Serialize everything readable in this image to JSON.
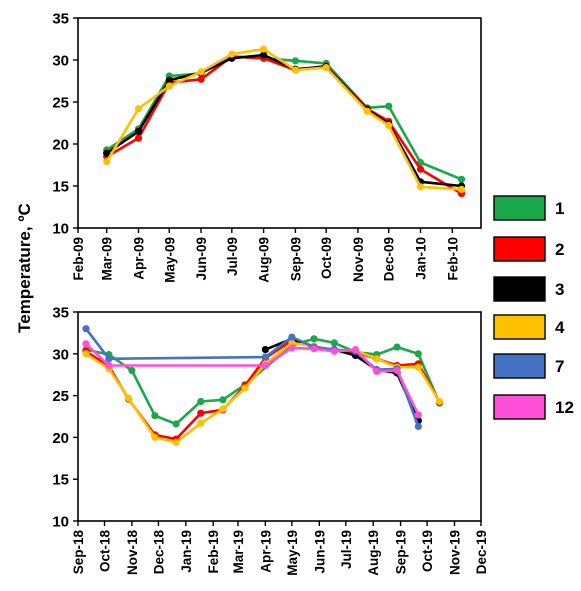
{
  "shared_ylabel": "Temperature, ºC",
  "legend": [
    {
      "label": "1",
      "color": "#1aa84a"
    },
    {
      "label": "2",
      "color": "#ff0000"
    },
    {
      "label": "3",
      "color": "#000000"
    },
    {
      "label": "4",
      "color": "#ffc000"
    },
    {
      "label": "7",
      "color": "#4472c4"
    },
    {
      "label": "12",
      "color": "#ff4fd8"
    }
  ],
  "chart_data": [
    {
      "type": "line",
      "title": "",
      "xlabel": "",
      "ylabel": "Temperature, ºC",
      "ylim": [
        10,
        35
      ],
      "yticks": [
        10,
        15,
        20,
        25,
        30,
        35
      ],
      "grid": false,
      "x_axis": {
        "type": "date",
        "min": "2009-02-01",
        "max": "2010-03-01"
      },
      "xticks": [
        {
          "date": "2009-02-01",
          "label": "Feb-09"
        },
        {
          "date": "2009-03-01",
          "label": "Mar-09"
        },
        {
          "date": "2009-04-01",
          "label": "Apr-09"
        },
        {
          "date": "2009-05-01",
          "label": "May-09"
        },
        {
          "date": "2009-06-01",
          "label": "Jun-09"
        },
        {
          "date": "2009-07-01",
          "label": "Jul-09"
        },
        {
          "date": "2009-08-01",
          "label": "Aug-09"
        },
        {
          "date": "2009-09-01",
          "label": "Sep-09"
        },
        {
          "date": "2009-10-01",
          "label": "Oct-09"
        },
        {
          "date": "2009-11-01",
          "label": "Nov-09"
        },
        {
          "date": "2009-12-01",
          "label": "Dec-09"
        },
        {
          "date": "2010-01-01",
          "label": "Jan-10"
        },
        {
          "date": "2010-02-01",
          "label": "Feb-10"
        }
      ],
      "series": [
        {
          "name": "1",
          "color": "#1aa84a",
          "points": [
            [
              "2009-03-01",
              19.3
            ],
            [
              "2009-04-01",
              21.8
            ],
            [
              "2009-05-01",
              28.1
            ],
            [
              "2009-06-01",
              28.4
            ],
            [
              "2009-07-01",
              30.4
            ],
            [
              "2009-08-01",
              30.2
            ],
            [
              "2009-09-01",
              29.9
            ],
            [
              "2009-10-01",
              29.6
            ],
            [
              "2009-11-10",
              24.3
            ],
            [
              "2009-12-01",
              24.5
            ],
            [
              "2010-01-01",
              17.8
            ],
            [
              "2010-02-10",
              15.8
            ]
          ]
        },
        {
          "name": "2",
          "color": "#ff0000",
          "points": [
            [
              "2009-03-01",
              18.5
            ],
            [
              "2009-04-01",
              20.7
            ],
            [
              "2009-05-01",
              27.3
            ],
            [
              "2009-06-01",
              27.7
            ],
            [
              "2009-07-01",
              30.4
            ],
            [
              "2009-08-01",
              30.2
            ],
            [
              "2009-09-01",
              28.8
            ],
            [
              "2009-10-01",
              29.3
            ],
            [
              "2009-11-10",
              24.2
            ],
            [
              "2009-12-01",
              22.7
            ],
            [
              "2010-01-01",
              17.0
            ],
            [
              "2010-02-10",
              14.1
            ]
          ]
        },
        {
          "name": "3",
          "color": "#000000",
          "points": [
            [
              "2009-03-01",
              18.9
            ],
            [
              "2009-04-01",
              21.5
            ],
            [
              "2009-05-01",
              27.6
            ],
            [
              "2009-06-01",
              28.5
            ],
            [
              "2009-07-01",
              30.2
            ],
            [
              "2009-08-01",
              30.6
            ],
            [
              "2009-09-01",
              28.9
            ],
            [
              "2009-10-01",
              29.2
            ],
            [
              "2009-11-10",
              24.1
            ],
            [
              "2009-12-01",
              22.4
            ],
            [
              "2010-01-01",
              15.5
            ],
            [
              "2010-02-10",
              15.0
            ]
          ]
        },
        {
          "name": "4",
          "color": "#ffc000",
          "points": [
            [
              "2009-03-01",
              17.9
            ],
            [
              "2009-04-01",
              24.2
            ],
            [
              "2009-05-01",
              26.9
            ],
            [
              "2009-06-01",
              28.6
            ],
            [
              "2009-07-01",
              30.7
            ],
            [
              "2009-08-01",
              31.3
            ],
            [
              "2009-09-01",
              28.8
            ],
            [
              "2009-10-01",
              29.1
            ],
            [
              "2009-11-10",
              23.9
            ],
            [
              "2009-12-01",
              22.2
            ],
            [
              "2010-01-01",
              14.9
            ],
            [
              "2010-02-10",
              14.6
            ]
          ]
        }
      ]
    },
    {
      "type": "line",
      "title": "",
      "xlabel": "",
      "ylabel": "Temperature, ºC",
      "ylim": [
        10,
        35
      ],
      "yticks": [
        10,
        15,
        20,
        25,
        30,
        35
      ],
      "grid": false,
      "x_axis": {
        "type": "date",
        "min": "2018-09-01",
        "max": "2019-12-01"
      },
      "xticks": [
        {
          "date": "2018-09-01",
          "label": "Sep-18"
        },
        {
          "date": "2018-10-01",
          "label": "Oct-18"
        },
        {
          "date": "2018-11-01",
          "label": "Nov-18"
        },
        {
          "date": "2018-12-01",
          "label": "Dec-18"
        },
        {
          "date": "2019-01-01",
          "label": "Jan-19"
        },
        {
          "date": "2019-02-01",
          "label": "Feb-19"
        },
        {
          "date": "2019-03-01",
          "label": "Mar-19"
        },
        {
          "date": "2019-04-01",
          "label": "Apr-19"
        },
        {
          "date": "2019-05-01",
          "label": "May-19"
        },
        {
          "date": "2019-06-01",
          "label": "Jun-19"
        },
        {
          "date": "2019-07-01",
          "label": "Jul-19"
        },
        {
          "date": "2019-08-01",
          "label": "Aug-19"
        },
        {
          "date": "2019-09-01",
          "label": "Sep-19"
        },
        {
          "date": "2019-10-01",
          "label": "Oct-19"
        },
        {
          "date": "2019-11-01",
          "label": "Nov-19"
        },
        {
          "date": "2019-12-01",
          "label": "Dec-19"
        }
      ],
      "series": [
        {
          "name": "1",
          "color": "#1aa84a",
          "points": [
            [
              "2018-09-10",
              30.5
            ],
            [
              "2018-10-06",
              29.9
            ],
            [
              "2018-11-01",
              28.0
            ],
            [
              "2018-11-27",
              22.6
            ],
            [
              "2018-12-21",
              21.6
            ],
            [
              "2019-01-18",
              24.3
            ],
            [
              "2019-02-12",
              24.5
            ],
            [
              "2019-03-09",
              26.3
            ],
            [
              "2019-05-01",
              31.0
            ],
            [
              "2019-05-26",
              31.8
            ],
            [
              "2019-06-18",
              31.3
            ],
            [
              "2019-07-12",
              30.2
            ],
            [
              "2019-08-05",
              29.9
            ],
            [
              "2019-08-28",
              30.8
            ],
            [
              "2019-09-21",
              30.0
            ],
            [
              "2019-10-15",
              24.1
            ]
          ]
        },
        {
          "name": "2",
          "color": "#ff0000",
          "points": [
            [
              "2018-09-10",
              30.3
            ],
            [
              "2018-10-06",
              28.5
            ],
            [
              "2018-10-28",
              24.6
            ],
            [
              "2018-11-27",
              20.3
            ],
            [
              "2018-12-21",
              19.8
            ],
            [
              "2019-01-18",
              22.9
            ],
            [
              "2019-02-12",
              23.3
            ],
            [
              "2019-03-09",
              26.2
            ],
            [
              "2019-04-01",
              29.5
            ],
            [
              "2019-05-01",
              31.6
            ],
            [
              "2019-05-26",
              30.9
            ],
            [
              "2019-06-18",
              30.4
            ],
            [
              "2019-07-12",
              30.2
            ],
            [
              "2019-08-05",
              29.4
            ],
            [
              "2019-08-28",
              28.6
            ],
            [
              "2019-09-21",
              28.8
            ],
            [
              "2019-10-15",
              24.2
            ]
          ]
        },
        {
          "name": "3",
          "color": "#000000",
          "points": [
            [
              "2019-04-01",
              30.5
            ],
            [
              "2019-05-01",
              31.8
            ],
            [
              "2019-05-26",
              30.7
            ],
            [
              "2019-06-18",
              30.5
            ],
            [
              "2019-07-12",
              29.8
            ],
            [
              "2019-08-05",
              28.1
            ],
            [
              "2019-08-28",
              27.7
            ],
            [
              "2019-09-21",
              22.0
            ]
          ]
        },
        {
          "name": "4",
          "color": "#ffc000",
          "points": [
            [
              "2018-09-10",
              30.0
            ],
            [
              "2018-10-06",
              28.2
            ],
            [
              "2018-10-28",
              24.7
            ],
            [
              "2018-11-27",
              20.0
            ],
            [
              "2018-12-21",
              19.4
            ],
            [
              "2019-01-18",
              21.7
            ],
            [
              "2019-02-12",
              23.4
            ],
            [
              "2019-03-09",
              25.9
            ],
            [
              "2019-04-01",
              28.8
            ],
            [
              "2019-05-01",
              31.3
            ],
            [
              "2019-05-26",
              30.9
            ],
            [
              "2019-06-18",
              30.4
            ],
            [
              "2019-07-12",
              30.4
            ],
            [
              "2019-08-05",
              29.4
            ],
            [
              "2019-08-28",
              28.4
            ],
            [
              "2019-09-21",
              28.4
            ],
            [
              "2019-10-15",
              24.3
            ]
          ]
        },
        {
          "name": "7",
          "color": "#4472c4",
          "points": [
            [
              "2018-09-10",
              33.0
            ],
            [
              "2018-10-06",
              29.4
            ],
            [
              "2019-04-01",
              29.6
            ],
            [
              "2019-05-01",
              32.0
            ],
            [
              "2019-05-26",
              30.8
            ],
            [
              "2019-06-18",
              30.5
            ],
            [
              "2019-07-12",
              30.3
            ],
            [
              "2019-08-05",
              28.1
            ],
            [
              "2019-08-28",
              28.2
            ],
            [
              "2019-09-21",
              21.3
            ]
          ]
        },
        {
          "name": "12",
          "color": "#ff4fd8",
          "points": [
            [
              "2018-09-10",
              31.2
            ],
            [
              "2018-10-06",
              28.6
            ],
            [
              "2019-04-01",
              28.6
            ],
            [
              "2019-05-01",
              30.7
            ],
            [
              "2019-05-26",
              30.6
            ],
            [
              "2019-06-18",
              30.3
            ],
            [
              "2019-07-12",
              30.5
            ],
            [
              "2019-08-05",
              27.9
            ],
            [
              "2019-08-28",
              28.0
            ],
            [
              "2019-09-21",
              22.7
            ]
          ]
        }
      ]
    }
  ]
}
